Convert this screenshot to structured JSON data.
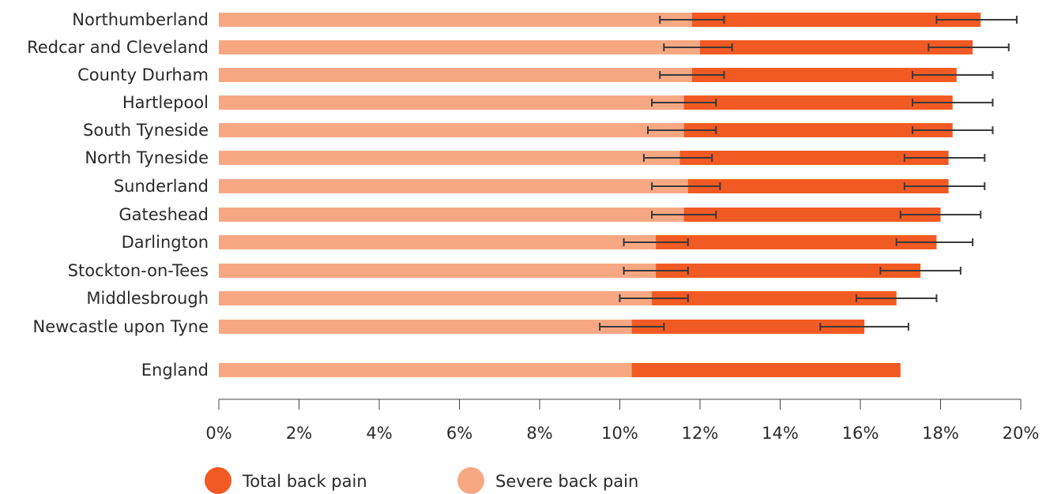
{
  "chart_data": {
    "type": "bar",
    "orientation": "horizontal",
    "stacked": false,
    "title": "",
    "xlabel": "",
    "ylabel": "",
    "xlim": [
      0,
      20
    ],
    "x_ticks": [
      "0%",
      "2%",
      "4%",
      "6%",
      "8%",
      "10%",
      "12%",
      "14%",
      "16%",
      "18%",
      "20%"
    ],
    "grid": false,
    "legend_position": "bottom-left",
    "categories": [
      "Northumberland",
      "Redcar and Cleveland",
      "County Durham",
      "Hartlepool",
      "South Tyneside",
      "North Tyneside",
      "Sunderland",
      "Gateshead",
      "Darlington",
      "Stockton-on-Tees",
      "Middlesbrough",
      "Newcastle upon Tyne",
      "England"
    ],
    "series": [
      {
        "name": "Total back pain",
        "color": "#f15a22",
        "values": [
          19.0,
          18.8,
          18.4,
          18.3,
          18.3,
          18.2,
          18.2,
          18.0,
          17.9,
          17.5,
          16.9,
          16.1,
          17.0
        ],
        "error_low": [
          17.9,
          17.7,
          17.3,
          17.3,
          17.3,
          17.1,
          17.1,
          17.0,
          16.9,
          16.5,
          15.9,
          15.0,
          null
        ],
        "error_high": [
          19.9,
          19.7,
          19.3,
          19.3,
          19.3,
          19.1,
          19.1,
          19.0,
          18.8,
          18.5,
          17.9,
          17.2,
          null
        ]
      },
      {
        "name": "Severe back pain",
        "color": "#f7a882",
        "values": [
          11.8,
          12.0,
          11.8,
          11.6,
          11.6,
          11.5,
          11.7,
          11.6,
          10.9,
          10.9,
          10.8,
          10.3,
          10.3
        ],
        "error_low": [
          11.0,
          11.1,
          11.0,
          10.8,
          10.7,
          10.6,
          10.8,
          10.8,
          10.1,
          10.1,
          10.0,
          9.5,
          null
        ],
        "error_high": [
          12.6,
          12.8,
          12.6,
          12.4,
          12.4,
          12.3,
          12.5,
          12.4,
          11.7,
          11.7,
          11.7,
          11.1,
          null
        ]
      }
    ]
  }
}
